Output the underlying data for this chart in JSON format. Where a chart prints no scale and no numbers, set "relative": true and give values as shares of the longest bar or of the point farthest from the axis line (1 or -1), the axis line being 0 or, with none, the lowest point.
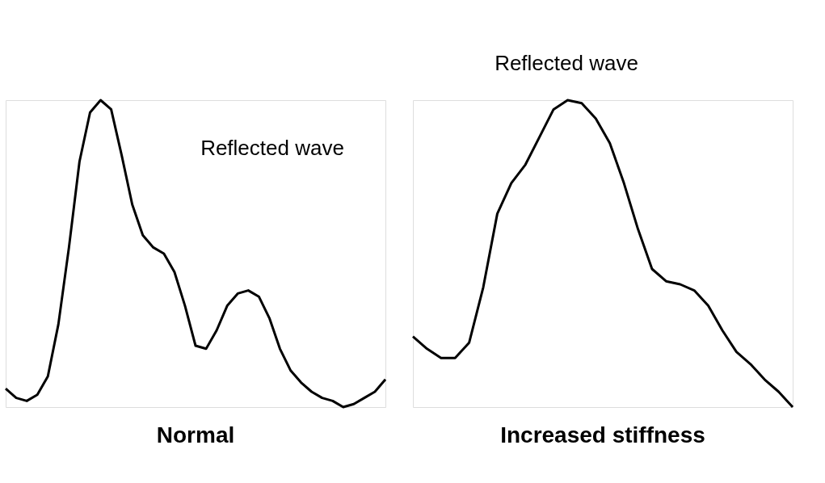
{
  "chart_data": [
    {
      "type": "line",
      "title": "Normal",
      "relative": true,
      "color": "#000000",
      "categories": [
        null,
        null,
        null,
        null,
        null,
        null,
        null,
        null,
        null,
        null,
        null,
        null,
        null,
        null,
        null,
        null,
        null,
        null,
        null,
        null,
        null,
        null,
        null,
        null,
        null,
        null,
        null,
        null,
        null,
        null,
        null,
        null,
        null,
        null,
        null,
        null,
        null
      ],
      "values": [
        0.06,
        0.03,
        0.02,
        0.04,
        0.1,
        0.27,
        0.52,
        0.8,
        0.96,
        1,
        0.97,
        0.82,
        0.66,
        0.56,
        0.52,
        0.5,
        0.44,
        0.33,
        0.2,
        0.19,
        0.25,
        0.33,
        0.37,
        0.38,
        0.36,
        0.29,
        0.19,
        0.12,
        0.08,
        0.05,
        0.03,
        0.02,
        0,
        0.01,
        0.03,
        0.05,
        0.09
      ],
      "annotations": [
        "Reflected wave"
      ]
    },
    {
      "type": "line",
      "title": "Increased stiffness",
      "relative": true,
      "color": "#000000",
      "categories": [
        null,
        null,
        null,
        null,
        null,
        null,
        null,
        null,
        null,
        null,
        null,
        null,
        null,
        null,
        null,
        null,
        null,
        null,
        null,
        null,
        null,
        null,
        null,
        null,
        null,
        null,
        null,
        null
      ],
      "values": [
        0.23,
        0.19,
        0.16,
        0.16,
        0.21,
        0.39,
        0.63,
        0.73,
        0.79,
        0.88,
        0.97,
        1,
        0.99,
        0.94,
        0.86,
        0.73,
        0.58,
        0.45,
        0.41,
        0.4,
        0.38,
        0.33,
        0.25,
        0.18,
        0.14,
        0.09,
        0.05,
        0
      ],
      "annotations": [
        "Reflected wave"
      ]
    }
  ]
}
